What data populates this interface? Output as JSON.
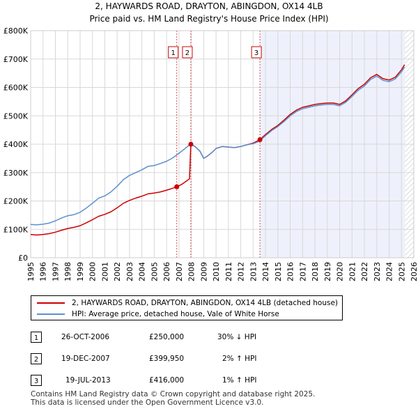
{
  "chart_data": {
    "type": "line",
    "title": "2, HAYWARDS ROAD, DRAYTON, ABINGDON, OX14 4LB",
    "subtitle": "Price paid vs. HM Land Registry's House Price Index (HPI)",
    "xlim": [
      1995,
      2026
    ],
    "ylim": [
      0,
      800000
    ],
    "x_ticks": [
      "1995",
      "1996",
      "1997",
      "1998",
      "1999",
      "2000",
      "2001",
      "2002",
      "2003",
      "2004",
      "2005",
      "2006",
      "2007",
      "2008",
      "2009",
      "2010",
      "2011",
      "2012",
      "2013",
      "2014",
      "2015",
      "2016",
      "2017",
      "2018",
      "2019",
      "2020",
      "2021",
      "2022",
      "2023",
      "2024",
      "2025",
      "2026"
    ],
    "y_ticks": [
      {
        "value": 0,
        "label": "£0"
      },
      {
        "value": 100000,
        "label": "£100K"
      },
      {
        "value": 200000,
        "label": "£200K"
      },
      {
        "value": 300000,
        "label": "£300K"
      },
      {
        "value": 400000,
        "label": "£400K"
      },
      {
        "value": 500000,
        "label": "£500K"
      },
      {
        "value": 600000,
        "label": "£600K"
      },
      {
        "value": 700000,
        "label": "£700K"
      },
      {
        "value": 800000,
        "label": "£800K"
      }
    ],
    "series": [
      {
        "name": "HPI: Average price, detached house, Vale of White Horse",
        "color": "#5b8fd0",
        "points": [
          [
            1995.0,
            117000
          ],
          [
            1995.5,
            116000
          ],
          [
            1996.0,
            118000
          ],
          [
            1996.5,
            122000
          ],
          [
            1997.0,
            130000
          ],
          [
            1997.5,
            140000
          ],
          [
            1998.0,
            148000
          ],
          [
            1998.5,
            152000
          ],
          [
            1999.0,
            160000
          ],
          [
            1999.5,
            175000
          ],
          [
            2000.0,
            192000
          ],
          [
            2000.5,
            210000
          ],
          [
            2001.0,
            218000
          ],
          [
            2001.5,
            232000
          ],
          [
            2002.0,
            252000
          ],
          [
            2002.5,
            275000
          ],
          [
            2003.0,
            290000
          ],
          [
            2003.5,
            300000
          ],
          [
            2004.0,
            310000
          ],
          [
            2004.5,
            322000
          ],
          [
            2005.0,
            325000
          ],
          [
            2005.5,
            332000
          ],
          [
            2006.0,
            340000
          ],
          [
            2006.5,
            352000
          ],
          [
            2007.0,
            368000
          ],
          [
            2007.5,
            385000
          ],
          [
            2007.9,
            400000
          ],
          [
            2008.3,
            392000
          ],
          [
            2008.7,
            375000
          ],
          [
            2009.0,
            350000
          ],
          [
            2009.3,
            358000
          ],
          [
            2009.7,
            372000
          ],
          [
            2010.0,
            385000
          ],
          [
            2010.5,
            392000
          ],
          [
            2011.0,
            390000
          ],
          [
            2011.5,
            388000
          ],
          [
            2012.0,
            392000
          ],
          [
            2012.5,
            398000
          ],
          [
            2013.0,
            402000
          ],
          [
            2013.5,
            410000
          ],
          [
            2014.0,
            430000
          ],
          [
            2014.5,
            448000
          ],
          [
            2015.0,
            462000
          ],
          [
            2015.5,
            480000
          ],
          [
            2016.0,
            500000
          ],
          [
            2016.5,
            515000
          ],
          [
            2017.0,
            525000
          ],
          [
            2017.5,
            530000
          ],
          [
            2018.0,
            535000
          ],
          [
            2018.5,
            538000
          ],
          [
            2019.0,
            540000
          ],
          [
            2019.5,
            540000
          ],
          [
            2020.0,
            535000
          ],
          [
            2020.5,
            548000
          ],
          [
            2021.0,
            568000
          ],
          [
            2021.5,
            590000
          ],
          [
            2022.0,
            605000
          ],
          [
            2022.5,
            628000
          ],
          [
            2023.0,
            640000
          ],
          [
            2023.5,
            625000
          ],
          [
            2024.0,
            620000
          ],
          [
            2024.5,
            630000
          ],
          [
            2025.0,
            655000
          ],
          [
            2025.25,
            672000
          ]
        ]
      },
      {
        "name": "2, HAYWARDS ROAD, DRAYTON, ABINGDON, OX14 4LB (detached house)",
        "color": "#cc0000",
        "points": [
          [
            1995.0,
            82000
          ],
          [
            1995.5,
            80000
          ],
          [
            1996.0,
            82000
          ],
          [
            1996.5,
            85000
          ],
          [
            1997.0,
            90000
          ],
          [
            1997.5,
            97000
          ],
          [
            1998.0,
            103000
          ],
          [
            1998.5,
            107000
          ],
          [
            1999.0,
            113000
          ],
          [
            1999.5,
            123000
          ],
          [
            2000.0,
            134000
          ],
          [
            2000.5,
            146000
          ],
          [
            2001.0,
            153000
          ],
          [
            2001.5,
            162000
          ],
          [
            2002.0,
            176000
          ],
          [
            2002.5,
            192000
          ],
          [
            2003.0,
            202000
          ],
          [
            2003.5,
            210000
          ],
          [
            2004.0,
            217000
          ],
          [
            2004.5,
            225000
          ],
          [
            2005.0,
            228000
          ],
          [
            2005.5,
            232000
          ],
          [
            2006.0,
            238000
          ],
          [
            2006.5,
            245000
          ],
          [
            2006.82,
            250000
          ],
          [
            2007.2,
            258000
          ],
          [
            2007.6,
            270000
          ],
          [
            2007.85,
            278000
          ],
          [
            2007.96,
            399950
          ],
          [
            2008.3,
            392000
          ],
          [
            2008.7,
            375000
          ],
          [
            2009.0,
            350000
          ],
          [
            2009.3,
            358000
          ],
          [
            2009.7,
            372000
          ],
          [
            2010.0,
            385000
          ],
          [
            2010.5,
            392000
          ],
          [
            2011.0,
            390000
          ],
          [
            2011.5,
            388000
          ],
          [
            2012.0,
            392000
          ],
          [
            2012.5,
            398000
          ],
          [
            2013.0,
            404000
          ],
          [
            2013.55,
            416000
          ],
          [
            2014.0,
            434000
          ],
          [
            2014.5,
            452000
          ],
          [
            2015.0,
            466000
          ],
          [
            2015.5,
            485000
          ],
          [
            2016.0,
            505000
          ],
          [
            2016.5,
            520000
          ],
          [
            2017.0,
            530000
          ],
          [
            2017.5,
            535000
          ],
          [
            2018.0,
            540000
          ],
          [
            2018.5,
            543000
          ],
          [
            2019.0,
            545000
          ],
          [
            2019.5,
            545000
          ],
          [
            2020.0,
            540000
          ],
          [
            2020.5,
            553000
          ],
          [
            2021.0,
            574000
          ],
          [
            2021.5,
            596000
          ],
          [
            2022.0,
            611000
          ],
          [
            2022.5,
            634000
          ],
          [
            2023.0,
            646000
          ],
          [
            2023.5,
            631000
          ],
          [
            2024.0,
            626000
          ],
          [
            2024.5,
            636000
          ],
          [
            2025.0,
            662000
          ],
          [
            2025.25,
            680000
          ]
        ]
      }
    ],
    "sales": [
      {
        "label": "1",
        "x": 2006.82,
        "value": 250000,
        "date": "26-OCT-2006",
        "price": "£250,000",
        "hpi": "30% ↓ HPI"
      },
      {
        "label": "2",
        "x": 2007.96,
        "value": 399950,
        "date": "19-DEC-2007",
        "price": "£399,950",
        "hpi": "2% ↑ HPI"
      },
      {
        "label": "3",
        "x": 2013.55,
        "value": 416000,
        "date": "19-JUL-2013",
        "price": "£416,000",
        "hpi": "1% ↑ HPI"
      }
    ],
    "shaded_region": [
      2013.55,
      2025.3
    ],
    "hatched_region": [
      2025.3,
      2026
    ]
  },
  "legend": {
    "red_label": "2, HAYWARDS ROAD, DRAYTON, ABINGDON, OX14 4LB (detached house)",
    "blue_label": "HPI: Average price, detached house, Vale of White Horse"
  },
  "footer": {
    "line1": "Contains HM Land Registry data © Crown copyright and database right 2025.",
    "line2": "This data is licensed under the Open Government Licence v3.0."
  }
}
